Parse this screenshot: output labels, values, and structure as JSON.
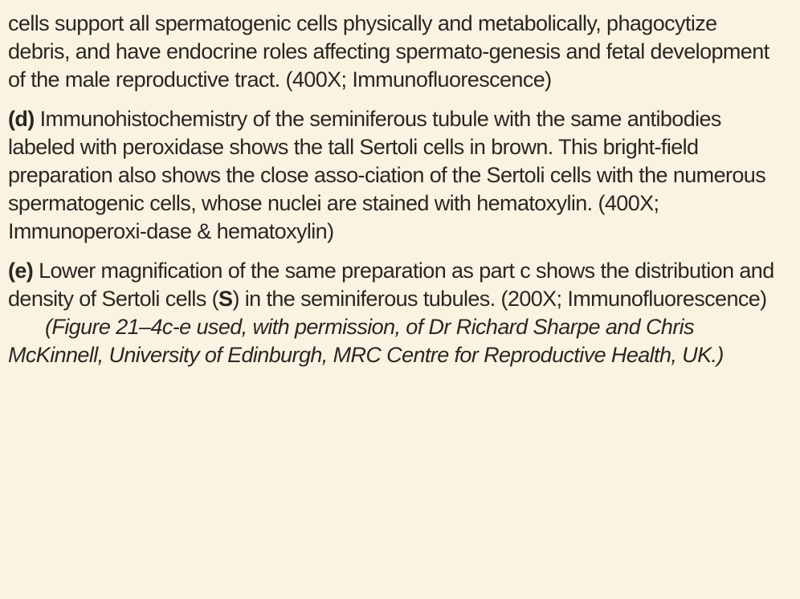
{
  "paragraphs": {
    "c_continued": {
      "text": "cells support all spermatogenic cells physically and metabolically, phagocytize debris, and have endocrine roles affecting spermato-genesis and fetal development of the male reproductive tract. (400X; Immunofluorescence)"
    },
    "d": {
      "label": "(d)",
      "text": " Immunohistochemistry of the seminiferous tubule with the same antibodies labeled with peroxidase shows the tall Sertoli cells in brown. This bright-field preparation also shows the close asso-ciation of the Sertoli cells with the numerous spermatogenic cells, whose nuclei are stained with hematoxylin. (400X; Immunoperoxi-dase & hematoxylin)"
    },
    "e": {
      "label": "(e)",
      "text_before": " Lower magnification of the same preparation as part c shows the distribution and density of Sertoli cells (",
      "ref": "S",
      "text_after": ") in the seminiferous tubules. (200X; Immunofluorescence)"
    }
  },
  "credit": {
    "text": "(Figure 21–4c-e used, with permission, of Dr Richard Sharpe and Chris McKinnell, University of Edinburgh, MRC Centre for Reproductive Health, UK.)"
  }
}
